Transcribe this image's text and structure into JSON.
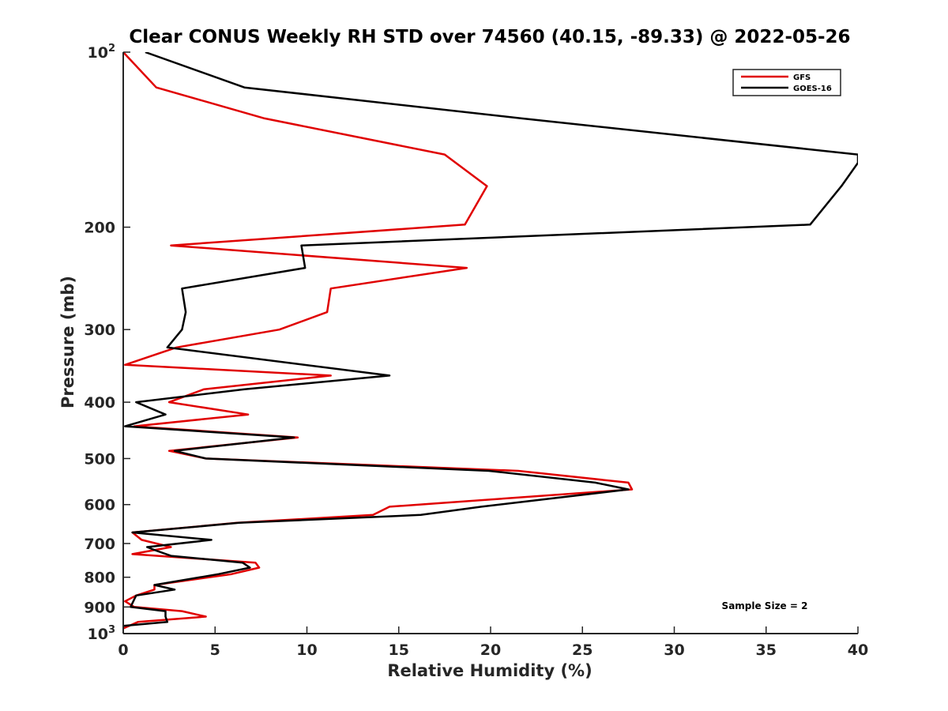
{
  "chart_data": {
    "type": "line",
    "title": "Clear CONUS Weekly RH STD over 74560 (40.15, -89.33) @ 2022-05-26",
    "xlabel": "Relative Humidity (%)",
    "ylabel": "Pressure (mb)",
    "xlim": [
      0,
      40
    ],
    "ylim": [
      100,
      1000
    ],
    "y_scale": "log",
    "y_reversed": true,
    "x_ticks": [
      "0",
      "5",
      "10",
      "15",
      "20",
      "25",
      "30",
      "35",
      "40"
    ],
    "y_ticks": [
      {
        "value": 100,
        "base": "10",
        "exp": "2"
      },
      {
        "value": 200,
        "label": "200"
      },
      {
        "value": 300,
        "label": "300"
      },
      {
        "value": 400,
        "label": "400"
      },
      {
        "value": 500,
        "label": "500"
      },
      {
        "value": 600,
        "label": "600"
      },
      {
        "value": 700,
        "label": "700"
      },
      {
        "value": 800,
        "label": "800"
      },
      {
        "value": 900,
        "label": "900"
      },
      {
        "value": 1000,
        "base": "10",
        "exp": "3"
      }
    ],
    "grid": false,
    "legend_position": "top-right",
    "annotation": "Sample Size = 2",
    "series": [
      {
        "name": "GFS",
        "color": "#e00000",
        "x": [
          0.0,
          1.8,
          7.7,
          17.5,
          19.8,
          18.6,
          2.6,
          18.7,
          11.3,
          11.1,
          8.5,
          2.9,
          0.1,
          11.3,
          4.4,
          2.5,
          6.8,
          0.6,
          9.5,
          2.5,
          4.5,
          21.5,
          27.5,
          27.7,
          14.5,
          13.6,
          6.2,
          0.5,
          1.0,
          2.6,
          0.5,
          7.2,
          7.4,
          5.9,
          1.7,
          1.7,
          0.7,
          0.1,
          0.6,
          3.2,
          4.5,
          0.8,
          0.0
        ],
        "y": [
          100,
          115,
          130,
          150,
          170,
          198,
          215,
          235,
          255,
          280,
          300,
          322,
          345,
          360,
          380,
          400,
          420,
          440,
          460,
          485,
          500,
          525,
          550,
          565,
          605,
          625,
          645,
          670,
          690,
          710,
          730,
          755,
          770,
          790,
          825,
          840,
          860,
          880,
          900,
          915,
          935,
          955,
          980
        ]
      },
      {
        "name": "GOES-16",
        "color": "#000000",
        "x": [
          1.2,
          6.6,
          21.7,
          40.0,
          40.0,
          39.1,
          37.4,
          9.7,
          9.9,
          3.2,
          3.4,
          3.2,
          2.4,
          14.5,
          6.6,
          0.7,
          2.3,
          0.1,
          9.3,
          2.8,
          4.5,
          19.9,
          25.7,
          27.5,
          19.5,
          16.2,
          6.3,
          0.5,
          4.8,
          1.3,
          1.8,
          2.6,
          6.5,
          6.9,
          5.2,
          1.7,
          2.8,
          0.7,
          0.4,
          2.3,
          2.3,
          2.4,
          0.0
        ],
        "y": [
          100,
          115,
          130,
          150,
          155,
          170,
          198,
          215,
          235,
          255,
          280,
          300,
          322,
          360,
          380,
          400,
          420,
          440,
          460,
          485,
          500,
          525,
          550,
          565,
          605,
          625,
          645,
          670,
          690,
          710,
          720,
          735,
          755,
          770,
          790,
          825,
          840,
          860,
          900,
          915,
          935,
          955,
          970
        ]
      }
    ]
  }
}
